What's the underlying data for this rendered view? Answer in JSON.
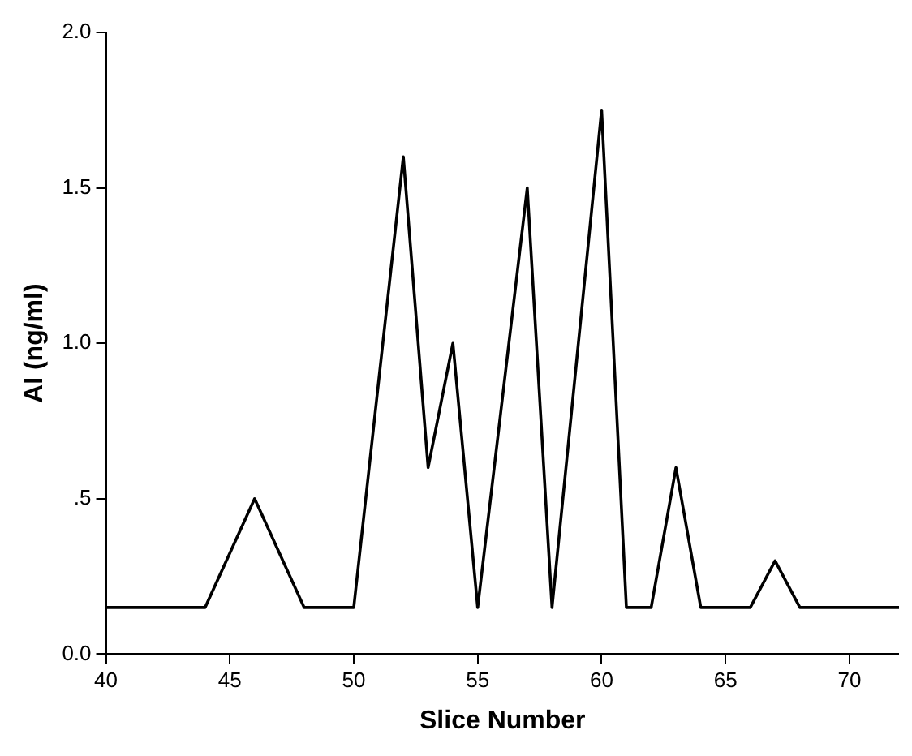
{
  "chart_data": {
    "type": "line",
    "xlabel": "Slice Number",
    "ylabel": "AI (ng/ml)",
    "x": [
      40,
      44,
      46,
      48,
      50,
      52,
      53,
      54,
      55,
      57,
      58,
      60,
      61,
      62,
      63,
      64,
      66,
      67,
      68,
      72
    ],
    "values": [
      0.15,
      0.15,
      0.5,
      0.15,
      0.15,
      1.6,
      0.6,
      1.0,
      0.15,
      1.5,
      0.15,
      1.75,
      0.15,
      0.15,
      0.6,
      0.15,
      0.15,
      0.3,
      0.15,
      0.15
    ],
    "color": "#000000",
    "xlim": [
      40,
      72
    ],
    "xticks": [
      40,
      45,
      50,
      55,
      60,
      65,
      70
    ],
    "ylim": [
      0,
      2
    ],
    "yticks": [
      {
        "value": 0,
        "label": "0.0"
      },
      {
        "value": 0.5,
        "label": ".5"
      },
      {
        "value": 1,
        "label": "1.0"
      },
      {
        "value": 1.5,
        "label": "1.5"
      },
      {
        "value": 2,
        "label": "2.0"
      }
    ],
    "grid": false,
    "marker": "none",
    "line_style": "solid"
  }
}
